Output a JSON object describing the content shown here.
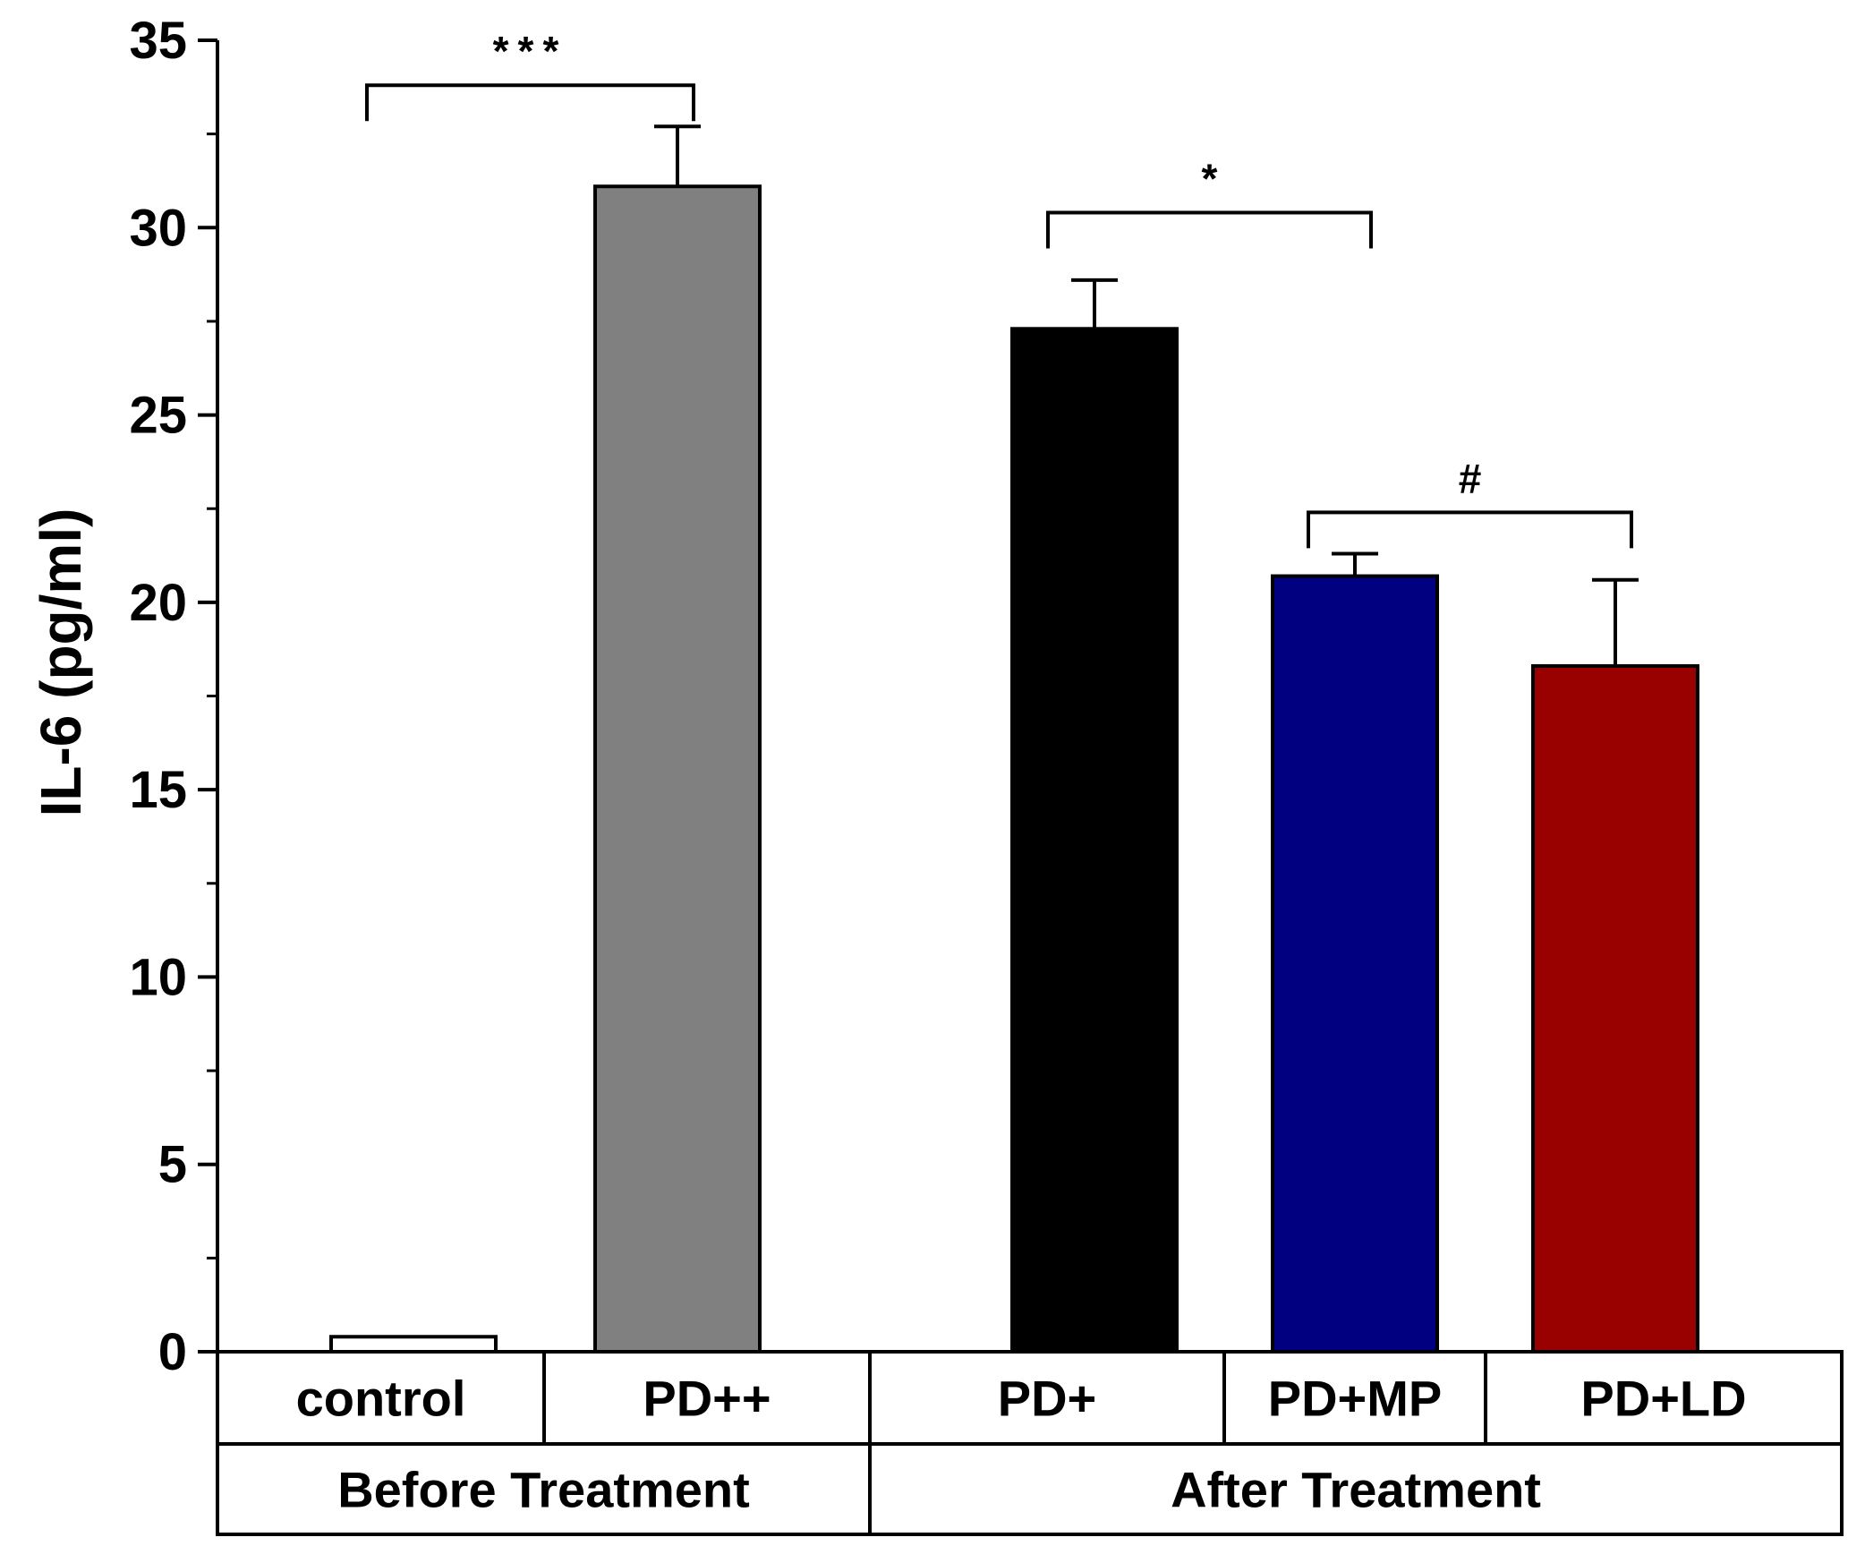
{
  "chart_data": {
    "type": "bar",
    "title": "",
    "xlabel": "",
    "ylabel": "IL-6 (pg/ml)",
    "ylim": [
      0,
      35
    ],
    "yticks": [
      0,
      5,
      10,
      15,
      20,
      25,
      30,
      35
    ],
    "grid": false,
    "categories": [
      "control",
      "PD++",
      "PD+",
      "PD+MP",
      "PD+LD"
    ],
    "values": [
      0.4,
      31.1,
      27.3,
      20.7,
      18.3
    ],
    "error": [
      0,
      1.6,
      1.3,
      0.6,
      2.3
    ],
    "colors": [
      "#ffffff",
      "#808080",
      "#000000",
      "#000080",
      "#990000"
    ],
    "groups": [
      {
        "label": "Before Treatment",
        "categories": [
          "control",
          "PD++"
        ]
      },
      {
        "label": "After Treatment",
        "categories": [
          "PD+",
          "PD+MP",
          "PD+LD"
        ]
      }
    ],
    "annotations": [
      {
        "label": "***",
        "from": "control",
        "to": "PD++",
        "level": 33.8
      },
      {
        "label": "*",
        "from": "PD+",
        "to": "PD+MP",
        "level": 30.4
      },
      {
        "label": "#",
        "from": "PD+MP",
        "to": "PD+LD",
        "level": 22.4
      }
    ]
  }
}
